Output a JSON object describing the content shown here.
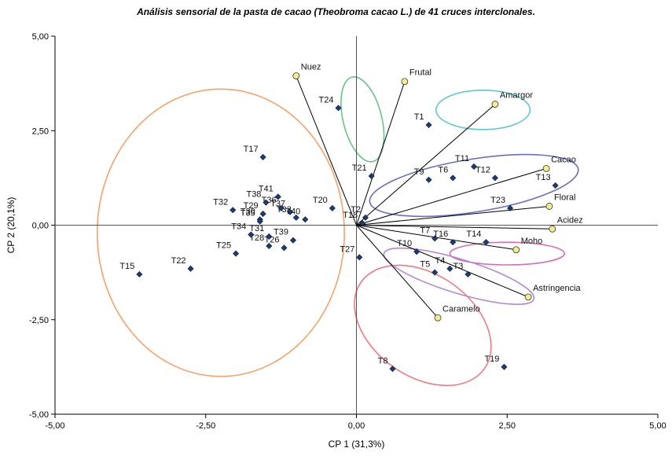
{
  "chart_data": {
    "type": "scatter",
    "title": "Análisis sensorial de la pasta de cacao (Theobroma cacao L.) de 41 cruces interclonales.",
    "xlabel": "CP 1 (31,3%)",
    "ylabel": "CP 2 (20,1%)",
    "xlim": [
      -5,
      5
    ],
    "ylim": [
      -5,
      5
    ],
    "xticks": [
      "-5,00",
      "-2,50",
      "0,00",
      "2,50",
      "5,00"
    ],
    "yticks": [
      "5,00",
      "2,50",
      "0,00",
      "-2,50",
      "-5,00"
    ],
    "reference_lines": "x=0, y=0",
    "grid": false,
    "colors": {
      "observation_point": "#1f3b73",
      "variable_point": "#f5ec8c",
      "vector_line": "#000000",
      "axis_line": "#555555"
    },
    "observations": [
      {
        "label": "T1",
        "x": 1.2,
        "y": 2.65
      },
      {
        "label": "T2",
        "x": 0.15,
        "y": 0.2
      },
      {
        "label": "T3",
        "x": 1.85,
        "y": -1.3
      },
      {
        "label": "T4",
        "x": 1.55,
        "y": -1.15
      },
      {
        "label": "T5",
        "x": 1.3,
        "y": -1.25
      },
      {
        "label": "T6",
        "x": 1.6,
        "y": 1.25
      },
      {
        "label": "T7",
        "x": 1.3,
        "y": -0.35
      },
      {
        "label": "T8",
        "x": 0.6,
        "y": -3.8
      },
      {
        "label": "T9",
        "x": 1.2,
        "y": 1.2
      },
      {
        "label": "T10",
        "x": 1.0,
        "y": -0.7
      },
      {
        "label": "T11",
        "x": 1.95,
        "y": 1.55
      },
      {
        "label": "T12",
        "x": 2.3,
        "y": 1.25
      },
      {
        "label": "T13",
        "x": 3.3,
        "y": 1.05
      },
      {
        "label": "T14",
        "x": 2.15,
        "y": -0.45
      },
      {
        "label": "T15",
        "x": -3.6,
        "y": -1.3
      },
      {
        "label": "T16",
        "x": 1.6,
        "y": -0.45
      },
      {
        "label": "T17",
        "x": -1.55,
        "y": 1.8
      },
      {
        "label": "T18",
        "x": 0.1,
        "y": 0.05
      },
      {
        "label": "T19",
        "x": 2.45,
        "y": -3.75
      },
      {
        "label": "T20",
        "x": -0.4,
        "y": 0.45
      },
      {
        "label": "T21",
        "x": 0.25,
        "y": 1.3
      },
      {
        "label": "T22",
        "x": -2.75,
        "y": -1.15
      },
      {
        "label": "T23",
        "x": 2.55,
        "y": 0.45
      },
      {
        "label": "T24",
        "x": -0.3,
        "y": 3.1
      },
      {
        "label": "T25",
        "x": -2.0,
        "y": -0.75
      },
      {
        "label": "T26",
        "x": -1.2,
        "y": -0.6
      },
      {
        "label": "T27",
        "x": 0.05,
        "y": -0.85
      },
      {
        "label": "T28",
        "x": -1.45,
        "y": -0.55
      },
      {
        "label": "T29",
        "x": -1.55,
        "y": 0.3
      },
      {
        "label": "T30",
        "x": -1.6,
        "y": 0.15
      },
      {
        "label": "T31",
        "x": -1.45,
        "y": -0.3
      },
      {
        "label": "T32",
        "x": -2.05,
        "y": 0.4
      },
      {
        "label": "T33",
        "x": -1.0,
        "y": 0.2
      },
      {
        "label": "T34",
        "x": -1.75,
        "y": -0.25
      },
      {
        "label": "T35",
        "x": -1.6,
        "y": 0.1
      },
      {
        "label": "T36",
        "x": -1.25,
        "y": 0.45
      },
      {
        "label": "T37",
        "x": -1.1,
        "y": 0.35
      },
      {
        "label": "T38",
        "x": -1.5,
        "y": 0.6
      },
      {
        "label": "T39",
        "x": -1.05,
        "y": -0.4
      },
      {
        "label": "T40",
        "x": -0.85,
        "y": 0.15
      },
      {
        "label": "T41",
        "x": -1.3,
        "y": 0.75
      }
    ],
    "variables": [
      {
        "label": "Nuez",
        "x": -1.0,
        "y": 3.95
      },
      {
        "label": "Frutal",
        "x": 0.8,
        "y": 3.8
      },
      {
        "label": "Amargor",
        "x": 2.3,
        "y": 3.2
      },
      {
        "label": "Cacao",
        "x": 3.15,
        "y": 1.5
      },
      {
        "label": "Floral",
        "x": 3.2,
        "y": 0.5
      },
      {
        "label": "Acidez",
        "x": 3.25,
        "y": -0.1
      },
      {
        "label": "Moho",
        "x": 2.65,
        "y": -0.65
      },
      {
        "label": "Astringencia",
        "x": 2.85,
        "y": -1.9
      },
      {
        "label": "Caramelo",
        "x": 1.35,
        "y": -2.45
      }
    ],
    "groups": [
      {
        "color": "#f4a36c",
        "cx": -2.25,
        "cy": -0.2,
        "rx": 2.05,
        "ry": 3.8,
        "rot": 0
      },
      {
        "color": "#6cc08a",
        "cx": 0.1,
        "cy": 2.8,
        "rx": 0.32,
        "ry": 1.15,
        "rot": 14
      },
      {
        "color": "#62c6d2",
        "cx": 2.1,
        "cy": 3.05,
        "rx": 0.78,
        "ry": 0.52,
        "rot": 0
      },
      {
        "color": "#6a6fbf",
        "cx": 1.95,
        "cy": 1.05,
        "rx": 1.75,
        "ry": 0.7,
        "rot": 9
      },
      {
        "color": "#d070b8",
        "cx": 2.5,
        "cy": -0.75,
        "rx": 0.95,
        "ry": 0.3,
        "rot": 0
      },
      {
        "color": "#b08ad0",
        "cx": 1.7,
        "cy": -1.35,
        "rx": 1.3,
        "ry": 0.45,
        "rot": -17
      },
      {
        "color": "#ee7b82",
        "cx": 1.1,
        "cy": -2.65,
        "rx": 1.25,
        "ry": 1.35,
        "rot": -35
      }
    ]
  }
}
